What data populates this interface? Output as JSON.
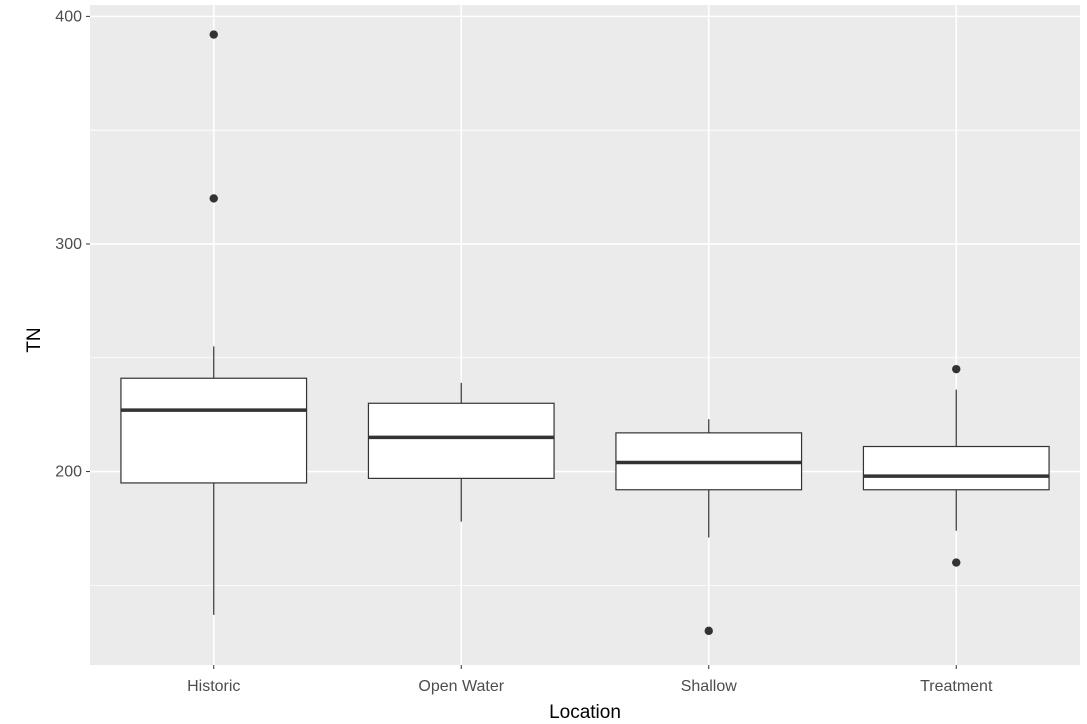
{
  "chart_data": {
    "type": "boxplot",
    "title": "",
    "xlabel": "Location",
    "ylabel": "TN",
    "ylim": [
      115,
      405
    ],
    "yticks": [
      200,
      300,
      400
    ],
    "grid": true,
    "categories": [
      "Historic",
      "Open Water",
      "Shallow",
      "Treatment"
    ],
    "boxes": [
      {
        "category": "Historic",
        "whisker_low": 137,
        "q1": 195,
        "median": 227,
        "q3": 241,
        "whisker_high": 255,
        "outliers": [
          392,
          320
        ]
      },
      {
        "category": "Open Water",
        "whisker_low": 178,
        "q1": 197,
        "median": 215,
        "q3": 230,
        "whisker_high": 239,
        "outliers": []
      },
      {
        "category": "Shallow",
        "whisker_low": 171,
        "q1": 192,
        "median": 204,
        "q3": 217,
        "whisker_high": 223,
        "outliers": [
          130
        ]
      },
      {
        "category": "Treatment",
        "whisker_low": 174,
        "q1": 192,
        "median": 198,
        "q3": 211,
        "whisker_high": 236,
        "outliers": [
          245,
          160
        ]
      }
    ],
    "colors": {
      "panel_background": "#ebebeb",
      "grid_line": "#ffffff",
      "box_fill": "#ffffff",
      "box_stroke": "#333333",
      "outlier": "#333333"
    }
  }
}
